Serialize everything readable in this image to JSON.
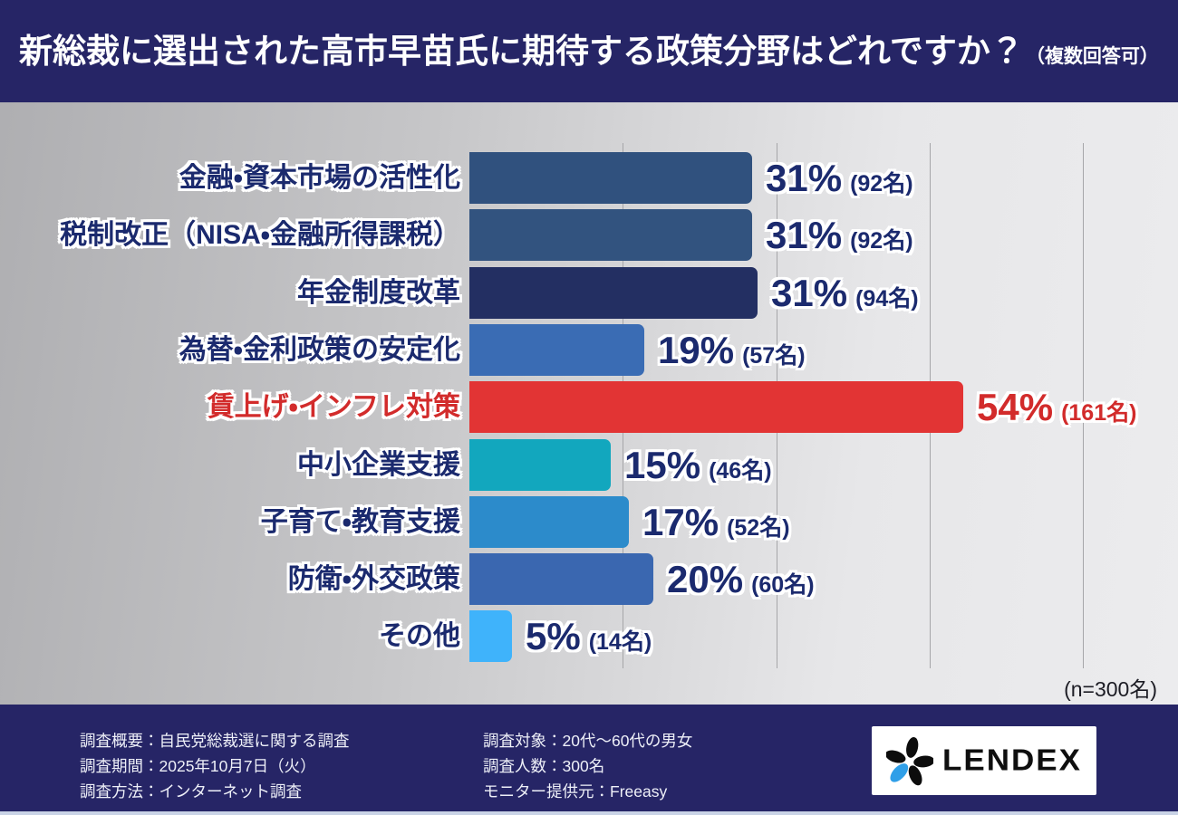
{
  "title": {
    "main": "新総裁に選出された高市早苗氏に期待する政策分野はどれですか？",
    "note": "（複数回答可）"
  },
  "chart_data": {
    "type": "bar",
    "orientation": "horizontal",
    "title": "新総裁に選出された高市早苗氏に期待する政策分野はどれですか？（複数回答可）",
    "n_total": 300,
    "n_label": "(n=300名)",
    "gridline_interval_persons": 50,
    "gridlines_at_counts": [
      50,
      100,
      150,
      200
    ],
    "legend": "none",
    "categories": [
      "金融・資本市場の活性化",
      "税制改正（NISA・金融所得課税）",
      "年金制度改革",
      "為替・金利政策の安定化",
      "賃上げ・インフレ対策",
      "中小企業支援",
      "子育て・教育支援",
      "防衛・外交政策",
      "その他"
    ],
    "values_percent": [
      31,
      31,
      31,
      19,
      54,
      15,
      17,
      20,
      5
    ],
    "counts_persons": [
      92,
      92,
      94,
      57,
      161,
      46,
      52,
      60,
      14
    ],
    "rows": [
      {
        "label": "金融・資本市場の活性化",
        "percent_label": "31%",
        "count_label": "(92名)",
        "count": 92,
        "color": "#30517e",
        "emphasized": false
      },
      {
        "label": "税制改正（NISA・金融所得課税）",
        "percent_label": "31%",
        "count_label": "(92名)",
        "count": 92,
        "color": "#32537f",
        "emphasized": false
      },
      {
        "label": "年金制度改革",
        "percent_label": "31%",
        "count_label": "(94名)",
        "count": 94,
        "color": "#232f62",
        "emphasized": false
      },
      {
        "label": "為替・金利政策の安定化",
        "percent_label": "19%",
        "count_label": "(57名)",
        "count": 57,
        "color": "#3a6cb4",
        "emphasized": false
      },
      {
        "label": "賃上げ・インフレ対策",
        "percent_label": "54%",
        "count_label": "(161名)",
        "count": 161,
        "color": "#e23434",
        "emphasized": true
      },
      {
        "label": "中小企業支援",
        "percent_label": "15%",
        "count_label": "(46名)",
        "count": 46,
        "color": "#12a7be",
        "emphasized": false
      },
      {
        "label": "子育て・教育支援",
        "percent_label": "17%",
        "count_label": "(52名)",
        "count": 52,
        "color": "#2c8bcb",
        "emphasized": false
      },
      {
        "label": "防衛・外交政策",
        "percent_label": "20%",
        "count_label": "(60名)",
        "count": 60,
        "color": "#3a67b0",
        "emphasized": false
      },
      {
        "label": "その他",
        "percent_label": "5%",
        "count_label": "(14名)",
        "count": 14,
        "color": "#3fb3fb",
        "emphasized": false
      }
    ],
    "colors": {
      "label_navy": "#1b2a6e",
      "highlight_red": "#d22b2b",
      "band_navy": "#262566",
      "gridline": "#a6a6a9"
    }
  },
  "footer": {
    "left_lines": [
      "調査概要：自民党総裁選に関する調査",
      "調査期間：2025年10月7日（火）",
      "調査方法：インターネット調査"
    ],
    "right_lines": [
      "調査対象：20代〜60代の男女",
      "調査人数：300名",
      "モニター提供元：Freeasy"
    ],
    "logo_text": "LENDEX"
  }
}
